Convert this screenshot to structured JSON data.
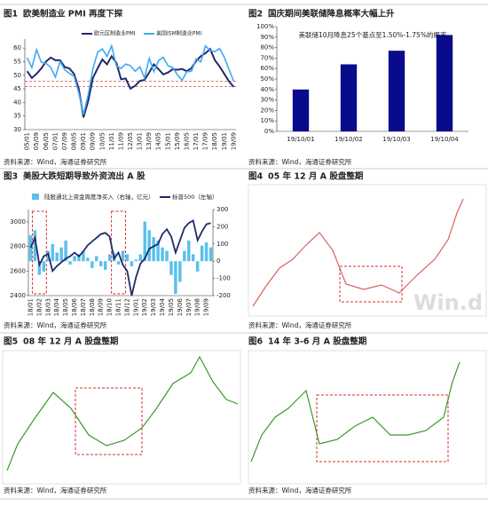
{
  "panels": [
    {
      "label": "图1",
      "title": "欧美制造业 PMI 再度下探",
      "source": "资料来源：Wind，海通证券研究所"
    },
    {
      "label": "图2",
      "title": "国庆期间美联储降息概率大幅上升",
      "source": "资料来源：Wind，海通证券研究所"
    },
    {
      "label": "图3",
      "title": "美股大跌短期导致外资流出 A 股",
      "source": "资料来源：Wind，海通证券研究所"
    },
    {
      "label": "图4",
      "title": "05 年 12 月 A 股盘整期",
      "source": "资料来源：Wind，海通证券研究所",
      "watermark": "Win.d"
    },
    {
      "label": "图5",
      "title": "08 年 12 月 A 股盘整期",
      "source": "资料来源：Wind，海通证券研究所"
    },
    {
      "label": "图6",
      "title": "14 年 3-6 月 A 股盘整期",
      "source": "资料来源：Wind，海通证券研究所"
    }
  ],
  "chart_data": [
    {
      "type": "line",
      "categories": [
        "05/01",
        null,
        "05/09",
        null,
        "06/05",
        null,
        "07/01",
        null,
        "07/09",
        null,
        "08/05",
        null,
        "09/01",
        null,
        "09/09",
        null,
        "10/05",
        null,
        "11/01",
        null,
        "11/09",
        null,
        "12/05",
        null,
        "13/01",
        null,
        "13/09",
        null,
        "14/05",
        null,
        "15/01",
        null,
        "15/09",
        null,
        "16/05",
        null,
        "17/01",
        null,
        "17/09",
        null,
        "18/05",
        null,
        "19/01",
        null,
        "19/09"
      ],
      "series": [
        {
          "name": "欧元区制造业PMI",
          "color": "#1f2a6b",
          "values": [
            51.5,
            49,
            50.5,
            52.5,
            55,
            56.5,
            55.5,
            55.5,
            53,
            52.5,
            50.5,
            45,
            34.5,
            40.5,
            49,
            52.5,
            55.8,
            54,
            57,
            54.6,
            48.5,
            48.8,
            45.1,
            46.1,
            47.9,
            48.3,
            51.1,
            54,
            52.2,
            50.3,
            51,
            52.2,
            52,
            52.3,
            51.5,
            52.6,
            55.2,
            57,
            58.1,
            59.6,
            55.5,
            53.2,
            50.5,
            47.7,
            45.7
          ]
        },
        {
          "name": "美国ISM制造业PMI",
          "color": "#3fa9f5",
          "values": [
            56.4,
            52.8,
            59.4,
            54.8,
            54.4,
            52.9,
            49.3,
            55,
            52,
            50.7,
            49.6,
            43.5,
            35.6,
            42.8,
            52.4,
            58.4,
            59.7,
            56.9,
            60.8,
            53.5,
            52.5,
            54.1,
            53.5,
            51.5,
            53.1,
            49,
            56.2,
            51.3,
            55.4,
            56.6,
            53.5,
            52.8,
            50.2,
            48.2,
            51.3,
            51.5,
            56,
            54.9,
            60.8,
            59.1,
            58.7,
            59.8,
            56.6,
            52.1,
            47.8
          ]
        }
      ],
      "reference_lines": [
        {
          "value": 47.8,
          "color": "#d9534f"
        },
        {
          "value": 45.8,
          "color": "#d9534f"
        }
      ],
      "ylim": [
        30,
        62
      ],
      "yticks": [
        30,
        35,
        40,
        45,
        50,
        55,
        60
      ]
    },
    {
      "type": "bar",
      "title": "美联储10月降息25个基点至1.50%-1.75%的概率",
      "categories": [
        "19/10/01",
        "19/10/02",
        "19/10/03",
        "19/10/04"
      ],
      "values": [
        40,
        64,
        77,
        92
      ],
      "color": "#0a0a8c",
      "ylim": [
        0,
        100
      ],
      "yticks": [
        {
          "value": 0,
          "label": "0%"
        },
        {
          "value": 10,
          "label": "10%"
        },
        {
          "value": 20,
          "label": "20%"
        },
        {
          "value": 30,
          "label": "30%"
        },
        {
          "value": 40,
          "label": "40%"
        },
        {
          "value": 50,
          "label": "50%"
        },
        {
          "value": 60,
          "label": "60%"
        },
        {
          "value": 70,
          "label": "70%"
        },
        {
          "value": 80,
          "label": "80%"
        },
        {
          "value": 90,
          "label": "90%"
        },
        {
          "value": 100,
          "label": "100%"
        }
      ]
    },
    {
      "type": "combo",
      "categories": [
        "18/01",
        null,
        "18/02",
        null,
        "18/03",
        null,
        "18/04",
        null,
        "18/05",
        null,
        "18/06",
        null,
        "18/07",
        null,
        "18/08",
        null,
        "18/09",
        null,
        "18/10",
        null,
        "18/11",
        null,
        "18/12",
        null,
        "19/01",
        null,
        "19/02",
        null,
        "19/03",
        null,
        "19/04",
        null,
        "19/05",
        null,
        "19/06",
        null,
        "19/07",
        null,
        "19/08",
        null,
        "19/09",
        null
      ],
      "series": [
        {
          "name": "陆股通北上资金周度净买入（右轴，亿元）",
          "type": "bar",
          "axis": "y2",
          "color": "#5bc0eb",
          "values": [
            150,
            180,
            -80,
            -60,
            60,
            100,
            50,
            80,
            120,
            -20,
            30,
            40,
            60,
            20,
            -40,
            30,
            -30,
            -50,
            40,
            50,
            -20,
            60,
            40,
            -30,
            10,
            40,
            230,
            180,
            140,
            120,
            80,
            60,
            -80,
            -190,
            -120,
            60,
            120,
            40,
            -60,
            90,
            110,
            80
          ]
        },
        {
          "name": "标普500（左轴）",
          "type": "line",
          "color": "#1f2a6b",
          "values": [
            2790,
            2870,
            2650,
            2720,
            2740,
            2600,
            2640,
            2670,
            2700,
            2720,
            2750,
            2720,
            2760,
            2810,
            2840,
            2870,
            2900,
            2910,
            2880,
            2700,
            2750,
            2650,
            2600,
            2400,
            2550,
            2660,
            2700,
            2780,
            2800,
            2820,
            2900,
            2940,
            2880,
            2750,
            2850,
            2950,
            2990,
            3010,
            2850,
            2920,
            2980,
            2990
          ]
        }
      ],
      "ylim": [
        2400,
        3100
      ],
      "yticks": [
        2400,
        2600,
        2800,
        3000
      ],
      "y2lim": [
        -200,
        300
      ],
      "y2ticks": [
        -200,
        -100,
        0,
        100,
        200,
        300
      ]
    }
  ]
}
